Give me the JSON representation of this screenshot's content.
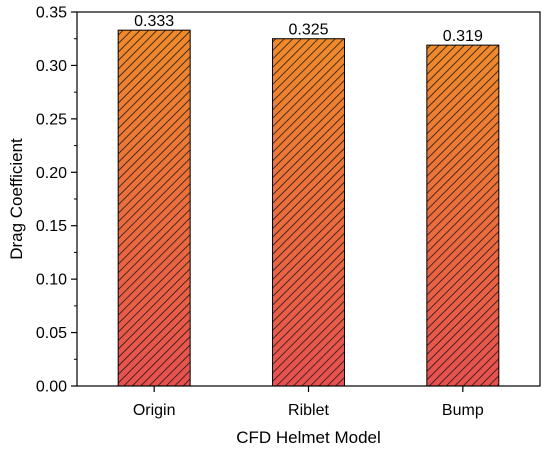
{
  "chart_data": {
    "type": "bar",
    "categories": [
      "Origin",
      "Riblet",
      "Bump"
    ],
    "values": [
      0.333,
      0.325,
      0.319
    ],
    "value_labels": [
      "0.333",
      "0.325",
      "0.319"
    ],
    "xlabel": "CFD Helmet Model",
    "ylabel": "Drag Coefficient",
    "ylim": [
      0,
      0.35
    ],
    "yticks": [
      "0.00",
      "0.05",
      "0.10",
      "0.15",
      "0.20",
      "0.25",
      "0.30",
      "0.35"
    ],
    "ytick_values": [
      0,
      0.05,
      0.1,
      0.15,
      0.2,
      0.25,
      0.3,
      0.35
    ],
    "grid": false,
    "legend": "none",
    "colors": {
      "bar_top": "#f08a2a",
      "bar_bottom": "#e8504f",
      "hatch": "#1a1a1a",
      "axis": "#000000"
    }
  }
}
